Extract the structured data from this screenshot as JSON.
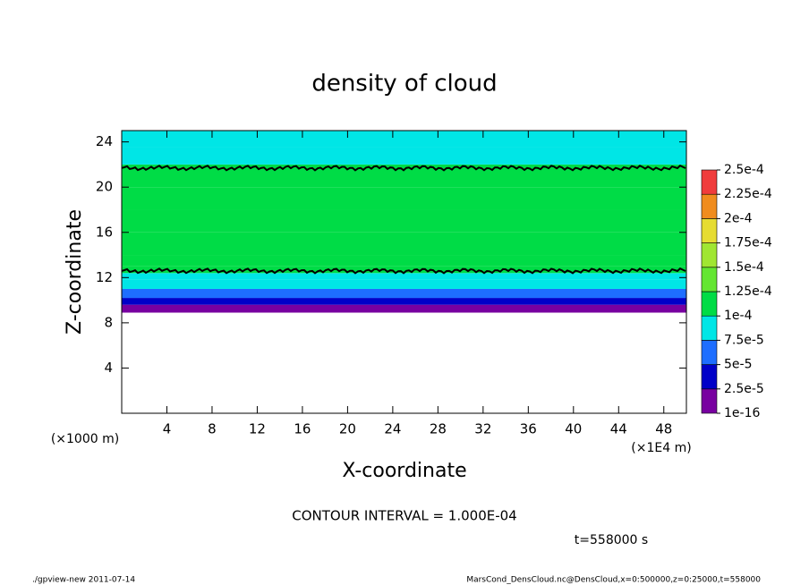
{
  "chart_data": {
    "type": "contour",
    "title": "density of cloud",
    "x_label": "X-coordinate",
    "y_label": "Z-coordinate",
    "y_unit": "(×1000 m)",
    "x_unit": "(×1E4 m)",
    "contour_interval": "CONTOUR INTERVAL = 1.000E-04",
    "time": "t=558000 s",
    "footer_left": "./gpview-new  2011-07-14",
    "footer_right": "MarsCond_DensCloud.nc@DensCloud,x=0:500000,z=0:25000,t=558000",
    "xlim": [
      0,
      50
    ],
    "xticks": [
      4,
      8,
      12,
      16,
      20,
      24,
      28,
      32,
      36,
      40,
      44,
      48
    ],
    "ylim": [
      0,
      25
    ],
    "yticks": [
      4,
      8,
      12,
      16,
      20,
      24
    ],
    "z": [
      8.9,
      9.6,
      10.2,
      11.0,
      11.8,
      12.4,
      13,
      14,
      16,
      18,
      20,
      22,
      23.5
    ],
    "values": [
      1e-05,
      3e-05,
      6e-05,
      8e-05,
      9e-05,
      0.000102,
      0.000108,
      0.000112,
      0.00011,
      0.000108,
      0.000105,
      9.5e-05,
      8.5e-05
    ],
    "contour_z": [
      12.6,
      21.7
    ],
    "levels": [
      {
        "value": 1e-16,
        "label": "1e-16"
      },
      {
        "value": 2.5e-05,
        "label": "2.5e-5"
      },
      {
        "value": 5e-05,
        "label": "5e-5"
      },
      {
        "value": 7.5e-05,
        "label": "7.5e-5"
      },
      {
        "value": 0.0001,
        "label": "1e-4"
      },
      {
        "value": 0.000125,
        "label": "1.25e-4"
      },
      {
        "value": 0.00015,
        "label": "1.5e-4"
      },
      {
        "value": 0.000175,
        "label": "1.75e-4"
      },
      {
        "value": 0.0002,
        "label": "2e-4"
      },
      {
        "value": 0.000225,
        "label": "2.25e-4"
      },
      {
        "value": 0.00025,
        "label": "2.5e-4"
      }
    ],
    "colors": [
      "#7800a0",
      "#0000c8",
      "#1e6eff",
      "#00e6e6",
      "#00dc46",
      "#64e632",
      "#a0e632",
      "#e6dc32",
      "#f08c1e",
      "#f03c3c"
    ]
  }
}
